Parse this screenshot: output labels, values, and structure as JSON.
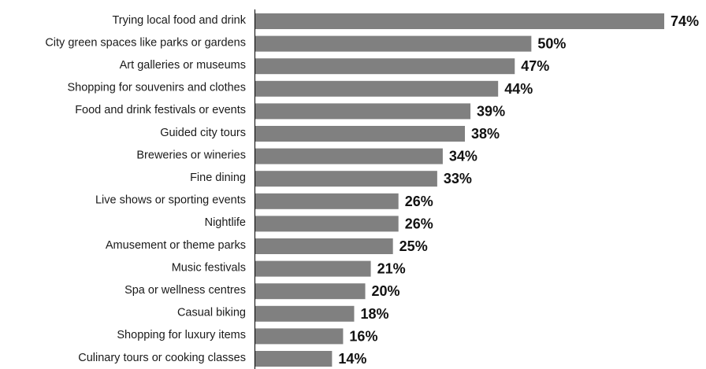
{
  "chart_data": {
    "type": "bar",
    "orientation": "horizontal",
    "title": "",
    "xlabel": "",
    "ylabel": "",
    "categories": [
      "Trying local food and drink",
      "City green spaces like parks or gardens",
      "Art galleries or museums",
      "Shopping for souvenirs and clothes",
      "Food and drink festivals or events",
      "Guided city tours",
      "Breweries or wineries",
      "Fine dining",
      "Live shows or sporting events",
      "Nightlife",
      "Amusement or theme parks",
      "Music festivals",
      "Spa or wellness centres",
      "Casual biking",
      "Shopping for luxury items",
      "Culinary tours or cooking classes"
    ],
    "values": [
      74,
      50,
      47,
      44,
      39,
      38,
      34,
      33,
      26,
      26,
      25,
      21,
      20,
      18,
      16,
      14
    ],
    "value_labels": [
      "74%",
      "50%",
      "47%",
      "44%",
      "39%",
      "38%",
      "34%",
      "33%",
      "26%",
      "26%",
      "25%",
      "21%",
      "20%",
      "18%",
      "16%",
      "14%"
    ],
    "xlim": [
      0,
      74
    ],
    "grid": false,
    "legend": "none",
    "bar_color": "#808080",
    "label_color": "#111111"
  }
}
